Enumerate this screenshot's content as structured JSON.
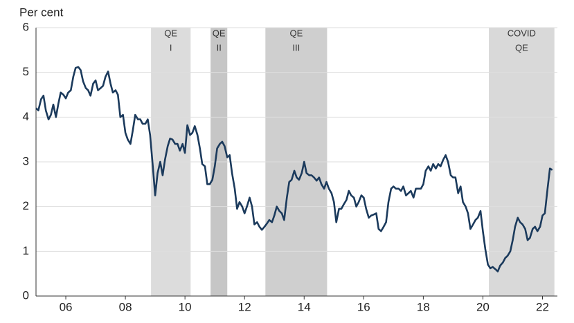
{
  "chart_data": {
    "type": "line",
    "ylabel": "Per cent",
    "xlim": [
      2005,
      2022.5
    ],
    "ylim": [
      0,
      6
    ],
    "yticks": [
      0,
      1,
      2,
      3,
      4,
      5,
      6
    ],
    "xticks": [
      {
        "value": 2006,
        "label": "06"
      },
      {
        "value": 2008,
        "label": "08"
      },
      {
        "value": 2010,
        "label": "10"
      },
      {
        "value": 2012,
        "label": "12"
      },
      {
        "value": 2014,
        "label": "14"
      },
      {
        "value": 2016,
        "label": "16"
      },
      {
        "value": 2018,
        "label": "18"
      },
      {
        "value": 2020,
        "label": "20"
      },
      {
        "value": 2022,
        "label": "22"
      }
    ],
    "grid": true,
    "color": "#1b3a5c",
    "shaded_regions": [
      {
        "label": [
          "QE",
          "I"
        ],
        "start": 2008.86,
        "end": 2010.19,
        "color": "#dcdcdc"
      },
      {
        "label": [
          "QE",
          "II"
        ],
        "start": 2010.86,
        "end": 2011.42,
        "color": "#c6c6c6"
      },
      {
        "label": [
          "QE",
          "III"
        ],
        "start": 2012.7,
        "end": 2014.77,
        "color": "#cfcfcf"
      },
      {
        "label": [
          "COVID",
          "QE"
        ],
        "start": 2020.2,
        "end": 2022.4,
        "color": "#d9d9d9"
      }
    ],
    "x": [
      2005.0,
      2005.08,
      2005.17,
      2005.25,
      2005.33,
      2005.42,
      2005.5,
      2005.58,
      2005.67,
      2005.75,
      2005.83,
      2005.92,
      2006.0,
      2006.08,
      2006.17,
      2006.25,
      2006.33,
      2006.42,
      2006.5,
      2006.58,
      2006.67,
      2006.75,
      2006.83,
      2006.92,
      2007.0,
      2007.08,
      2007.17,
      2007.25,
      2007.33,
      2007.42,
      2007.5,
      2007.58,
      2007.67,
      2007.75,
      2007.83,
      2007.92,
      2008.0,
      2008.08,
      2008.17,
      2008.25,
      2008.33,
      2008.42,
      2008.5,
      2008.58,
      2008.67,
      2008.75,
      2008.83,
      2008.92,
      2009.0,
      2009.08,
      2009.17,
      2009.25,
      2009.33,
      2009.42,
      2009.5,
      2009.58,
      2009.67,
      2009.75,
      2009.83,
      2009.92,
      2010.0,
      2010.08,
      2010.17,
      2010.25,
      2010.33,
      2010.42,
      2010.5,
      2010.58,
      2010.67,
      2010.75,
      2010.83,
      2010.92,
      2011.0,
      2011.08,
      2011.17,
      2011.25,
      2011.33,
      2011.42,
      2011.5,
      2011.58,
      2011.67,
      2011.75,
      2011.83,
      2011.92,
      2012.0,
      2012.08,
      2012.17,
      2012.25,
      2012.33,
      2012.42,
      2012.5,
      2012.58,
      2012.67,
      2012.75,
      2012.83,
      2012.92,
      2013.0,
      2013.08,
      2013.17,
      2013.25,
      2013.33,
      2013.42,
      2013.5,
      2013.58,
      2013.67,
      2013.75,
      2013.83,
      2013.92,
      2014.0,
      2014.08,
      2014.17,
      2014.25,
      2014.33,
      2014.42,
      2014.5,
      2014.58,
      2014.67,
      2014.75,
      2014.83,
      2014.92,
      2015.0,
      2015.08,
      2015.17,
      2015.25,
      2015.33,
      2015.42,
      2015.5,
      2015.58,
      2015.67,
      2015.75,
      2015.83,
      2015.92,
      2016.0,
      2016.08,
      2016.17,
      2016.25,
      2016.33,
      2016.42,
      2016.5,
      2016.58,
      2016.67,
      2016.75,
      2016.83,
      2016.92,
      2017.0,
      2017.08,
      2017.17,
      2017.25,
      2017.33,
      2017.42,
      2017.5,
      2017.58,
      2017.67,
      2017.75,
      2017.83,
      2017.92,
      2018.0,
      2018.08,
      2018.17,
      2018.25,
      2018.33,
      2018.42,
      2018.5,
      2018.58,
      2018.67,
      2018.75,
      2018.83,
      2018.92,
      2019.0,
      2019.08,
      2019.17,
      2019.25,
      2019.33,
      2019.42,
      2019.5,
      2019.58,
      2019.67,
      2019.75,
      2019.83,
      2019.92,
      2020.0,
      2020.08,
      2020.17,
      2020.25,
      2020.33,
      2020.42,
      2020.5,
      2020.58,
      2020.67,
      2020.75,
      2020.83,
      2020.92,
      2021.0,
      2021.08,
      2021.17,
      2021.25,
      2021.33,
      2021.42,
      2021.5,
      2021.58,
      2021.67,
      2021.75,
      2021.83,
      2021.92,
      2022.0,
      2022.08,
      2022.17,
      2022.25,
      2022.33
    ],
    "values": [
      4.2,
      4.15,
      4.4,
      4.48,
      4.15,
      3.95,
      4.05,
      4.28,
      4.0,
      4.3,
      4.55,
      4.5,
      4.42,
      4.55,
      4.6,
      4.9,
      5.1,
      5.12,
      5.05,
      4.8,
      4.65,
      4.6,
      4.48,
      4.75,
      4.82,
      4.6,
      4.65,
      4.7,
      4.9,
      5.02,
      4.75,
      4.55,
      4.6,
      4.5,
      4.0,
      4.05,
      3.65,
      3.5,
      3.4,
      3.7,
      4.05,
      3.95,
      3.95,
      3.85,
      3.85,
      3.95,
      3.6,
      2.9,
      2.25,
      2.75,
      3.0,
      2.7,
      3.05,
      3.35,
      3.52,
      3.5,
      3.4,
      3.4,
      3.25,
      3.4,
      3.2,
      3.82,
      3.6,
      3.65,
      3.8,
      3.6,
      3.3,
      2.95,
      2.9,
      2.5,
      2.5,
      2.6,
      2.9,
      3.3,
      3.4,
      3.45,
      3.35,
      3.1,
      3.15,
      2.75,
      2.4,
      1.95,
      2.1,
      2.0,
      1.85,
      2.0,
      2.2,
      2.0,
      1.6,
      1.65,
      1.55,
      1.48,
      1.55,
      1.62,
      1.7,
      1.65,
      1.8,
      2.0,
      1.9,
      1.85,
      1.7,
      2.2,
      2.55,
      2.6,
      2.8,
      2.65,
      2.6,
      2.75,
      3.0,
      2.75,
      2.7,
      2.7,
      2.65,
      2.58,
      2.65,
      2.5,
      2.4,
      2.55,
      2.4,
      2.3,
      2.1,
      1.65,
      1.95,
      1.95,
      2.05,
      2.15,
      2.35,
      2.25,
      2.2,
      2.0,
      2.1,
      2.25,
      2.2,
      1.95,
      1.75,
      1.8,
      1.82,
      1.85,
      1.5,
      1.45,
      1.55,
      1.65,
      2.1,
      2.4,
      2.45,
      2.4,
      2.4,
      2.35,
      2.45,
      2.25,
      2.3,
      2.35,
      2.2,
      2.4,
      2.4,
      2.4,
      2.5,
      2.8,
      2.9,
      2.8,
      2.95,
      2.85,
      2.95,
      2.9,
      3.05,
      3.15,
      3.0,
      2.7,
      2.65,
      2.65,
      2.3,
      2.45,
      2.1,
      2.0,
      1.85,
      1.5,
      1.6,
      1.7,
      1.75,
      1.9,
      1.45,
      1.05,
      0.7,
      0.62,
      0.65,
      0.6,
      0.55,
      0.68,
      0.75,
      0.85,
      0.9,
      1.0,
      1.25,
      1.55,
      1.75,
      1.65,
      1.6,
      1.5,
      1.25,
      1.3,
      1.5,
      1.55,
      1.45,
      1.55,
      1.8,
      1.85,
      2.4,
      2.85,
      2.82
    ]
  }
}
